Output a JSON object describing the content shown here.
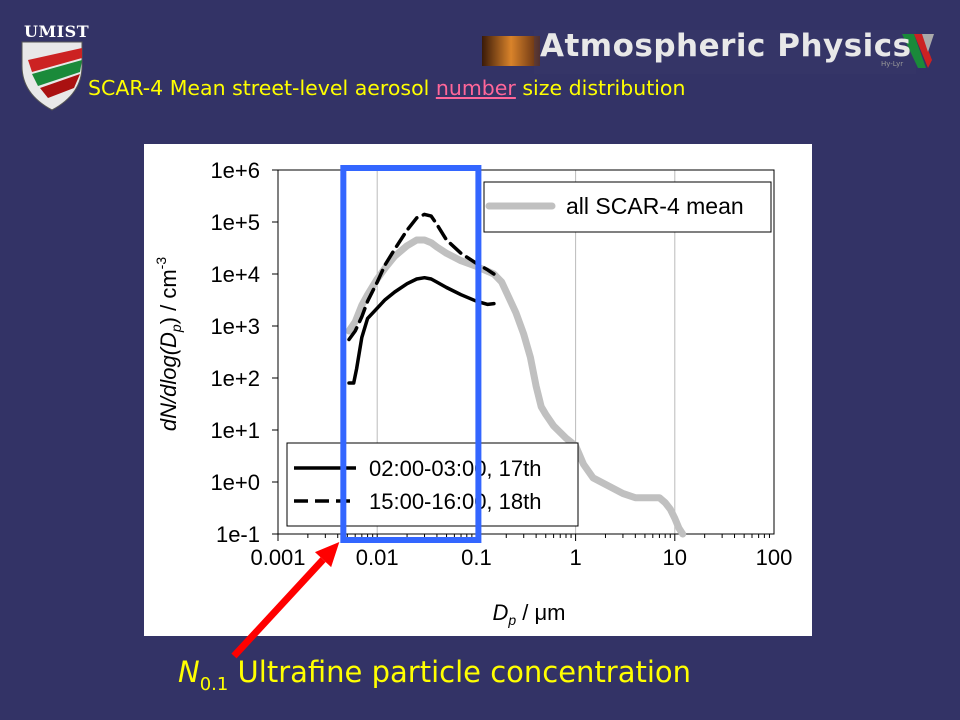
{
  "header": {
    "institution": "UMIST",
    "group": "Atmospheric Physics",
    "group_tag": "Hy-Lyr",
    "title_before": "SCAR-4 Mean street-level aerosol ",
    "title_link": "number",
    "title_after": " size distribution"
  },
  "footer": {
    "symbol": "N",
    "subscript": "0.1",
    "text": " Ultrafine particle concentration"
  },
  "colors": {
    "background": "#333366",
    "title_text": "#ffff00",
    "link": "#ff6699",
    "highlight_box": "#3366ff",
    "arrow": "#ff0000",
    "mean_line": "#c0c0c0"
  },
  "chart_data": {
    "type": "line",
    "x_scale": "log",
    "y_scale": "log",
    "xlim": [
      0.001,
      100
    ],
    "ylim": [
      0.1,
      1000000
    ],
    "x_ticks": [
      "0.001",
      "0.01",
      "0.1",
      "1",
      "10",
      "100"
    ],
    "y_ticks": [
      "1e-1",
      "1e+0",
      "1e+1",
      "1e+2",
      "1e+3",
      "1e+4",
      "1e+5",
      "1e+6"
    ],
    "xlabel_main": "D",
    "xlabel_sub": "p",
    "xlabel_unit": " / μm",
    "ylabel_pre": "dN/dlog(D",
    "ylabel_sub": "p",
    "ylabel_post": ") / cm",
    "ylabel_sup": "-3",
    "grid": "vertical",
    "series": [
      {
        "name": "all SCAR-4 mean",
        "style": "solid-thick",
        "color": "#c0c0c0",
        "points": [
          [
            0.0052,
            800
          ],
          [
            0.006,
            1200
          ],
          [
            0.007,
            2500
          ],
          [
            0.008,
            4000
          ],
          [
            0.01,
            8000
          ],
          [
            0.012,
            13000
          ],
          [
            0.015,
            22000
          ],
          [
            0.02,
            35000
          ],
          [
            0.025,
            45000
          ],
          [
            0.03,
            45000
          ],
          [
            0.035,
            40000
          ],
          [
            0.04,
            33000
          ],
          [
            0.05,
            25000
          ],
          [
            0.07,
            18000
          ],
          [
            0.1,
            14000
          ],
          [
            0.15,
            10000
          ],
          [
            0.18,
            7000
          ],
          [
            0.2,
            4500
          ],
          [
            0.25,
            1800
          ],
          [
            0.3,
            700
          ],
          [
            0.35,
            250
          ],
          [
            0.4,
            70
          ],
          [
            0.45,
            28
          ],
          [
            0.5,
            20
          ],
          [
            0.6,
            12
          ],
          [
            0.8,
            7
          ],
          [
            1,
            5
          ],
          [
            1.2,
            2.2
          ],
          [
            1.5,
            1.2
          ],
          [
            2,
            0.9
          ],
          [
            3,
            0.6
          ],
          [
            4,
            0.5
          ],
          [
            5,
            0.5
          ],
          [
            7,
            0.5
          ],
          [
            8,
            0.4
          ],
          [
            9,
            0.3
          ],
          [
            10,
            0.2
          ],
          [
            11,
            0.13
          ],
          [
            12,
            0.1
          ]
        ]
      },
      {
        "name": "02:00-03:00, 17th",
        "style": "solid",
        "color": "#000000",
        "points": [
          [
            0.0052,
            80
          ],
          [
            0.0058,
            80
          ],
          [
            0.0062,
            150
          ],
          [
            0.007,
            600
          ],
          [
            0.008,
            1400
          ],
          [
            0.01,
            2200
          ],
          [
            0.012,
            3200
          ],
          [
            0.015,
            4500
          ],
          [
            0.02,
            6500
          ],
          [
            0.025,
            8000
          ],
          [
            0.03,
            8500
          ],
          [
            0.035,
            8000
          ],
          [
            0.04,
            7000
          ],
          [
            0.05,
            5500
          ],
          [
            0.07,
            4000
          ],
          [
            0.1,
            3000
          ],
          [
            0.13,
            2600
          ],
          [
            0.15,
            2700
          ]
        ]
      },
      {
        "name": "15:00-16:00, 18th",
        "style": "dashed",
        "color": "#000000",
        "points": [
          [
            0.0052,
            550
          ],
          [
            0.006,
            800
          ],
          [
            0.007,
            1500
          ],
          [
            0.008,
            3000
          ],
          [
            0.01,
            7000
          ],
          [
            0.012,
            15000
          ],
          [
            0.015,
            30000
          ],
          [
            0.02,
            70000
          ],
          [
            0.025,
            120000
          ],
          [
            0.03,
            140000
          ],
          [
            0.035,
            130000
          ],
          [
            0.04,
            90000
          ],
          [
            0.05,
            45000
          ],
          [
            0.07,
            25000
          ],
          [
            0.1,
            16000
          ],
          [
            0.13,
            12000
          ],
          [
            0.15,
            10000
          ]
        ]
      }
    ],
    "legend_top": "all SCAR-4 mean",
    "legend_bottom": [
      "02:00-03:00, 17th",
      "15:00-16:00, 18th"
    ],
    "highlight_range": [
      0.005,
      0.1
    ]
  }
}
